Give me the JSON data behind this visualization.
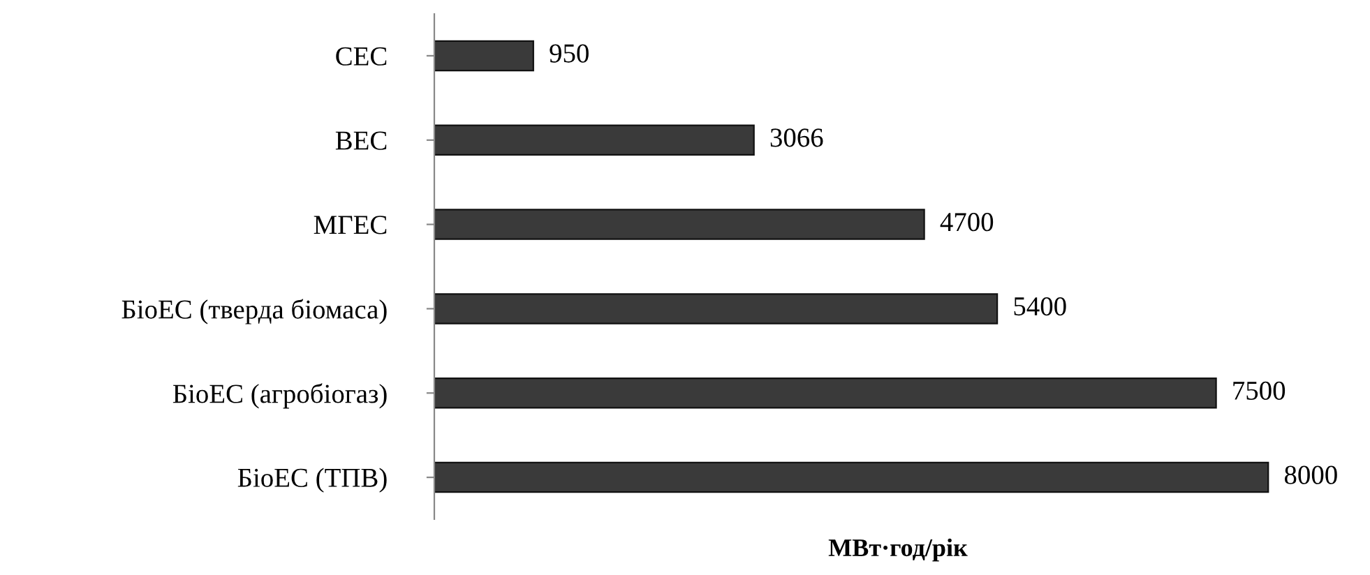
{
  "chart_data": {
    "type": "bar",
    "orientation": "horizontal",
    "categories": [
      "СЕС",
      "ВЕС",
      "МГЕС",
      "БіоЕС (тверда біомаса)",
      "БіоЕС (агробіогаз)",
      "БіоЕС (ТПВ)"
    ],
    "values": [
      950,
      3066,
      4700,
      5400,
      7500,
      8000
    ],
    "color": "#3a3a3a",
    "data_labels": true,
    "xlabel": "МВт·год/рік",
    "grid": false,
    "legend": false
  }
}
